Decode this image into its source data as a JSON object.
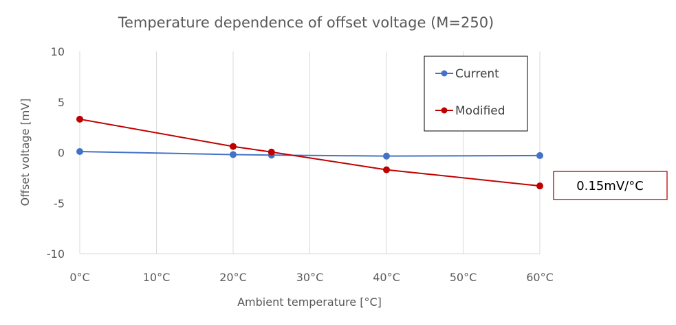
{
  "chart_data": {
    "type": "line",
    "title": "Temperature dependence of offset voltage (M=250)",
    "xlabel": "Ambient temperature [°C]",
    "ylabel": "Offset voltage [mV]",
    "xlim": [
      0,
      60
    ],
    "ylim": [
      -10,
      10
    ],
    "x_ticks": [
      0,
      10,
      20,
      30,
      40,
      50,
      60
    ],
    "x_tick_labels": [
      "0°C",
      "10°C",
      "20°C",
      "30°C",
      "40°C",
      "50°C",
      "60°C"
    ],
    "y_ticks": [
      10,
      5,
      0,
      -5,
      -10
    ],
    "y_tick_labels": [
      "10",
      "5",
      "0",
      "-5",
      "-10"
    ],
    "grid": "vertical",
    "legend_position": "top-right",
    "series": [
      {
        "name": "Current",
        "color": "#4472C4",
        "x": [
          0,
          20,
          25,
          40,
          60
        ],
        "y": [
          0.1,
          -0.2,
          -0.25,
          -0.35,
          -0.3
        ]
      },
      {
        "name": "Modified",
        "color": "#C00000",
        "x": [
          0,
          20,
          25,
          40,
          60
        ],
        "y": [
          3.3,
          0.6,
          0.05,
          -1.7,
          -3.3
        ]
      }
    ],
    "annotation": {
      "text": "0.15mV/°C",
      "border_color": "#C00000"
    }
  }
}
